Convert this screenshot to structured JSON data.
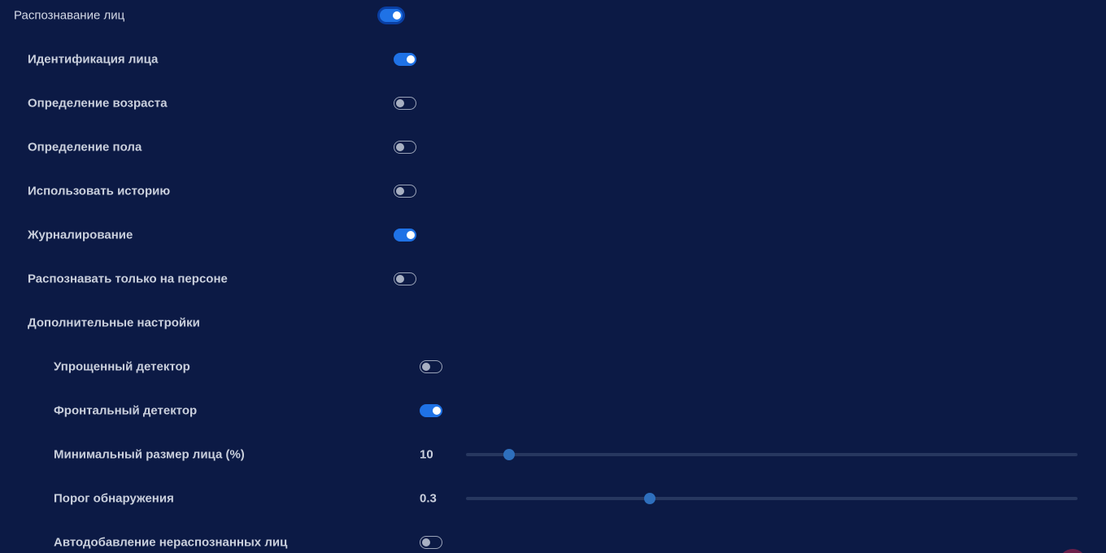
{
  "settings": {
    "face_recognition": {
      "label": "Распознавание лиц",
      "enabled": true
    },
    "face_identification": {
      "label": "Идентификация лица",
      "enabled": true
    },
    "age_detection": {
      "label": "Определение возраста",
      "enabled": false
    },
    "gender_detection": {
      "label": "Определение пола",
      "enabled": false
    },
    "use_history": {
      "label": "Использовать историю",
      "enabled": false
    },
    "logging": {
      "label": "Журналирование",
      "enabled": true
    },
    "person_only": {
      "label": "Распознавать только на персоне",
      "enabled": false
    },
    "advanced_settings": {
      "label": "Дополнительные настройки"
    },
    "simplified_detector": {
      "label": "Упрощенный детектор",
      "enabled": false
    },
    "frontal_detector": {
      "label": "Фронтальный детектор",
      "enabled": true
    },
    "min_face_size": {
      "label": "Минимальный размер лица (%)",
      "value": "10",
      "position": 0.07
    },
    "detection_threshold": {
      "label": "Порог обнаружения",
      "value": "0.3",
      "position": 0.3
    },
    "auto_add_unrecognized": {
      "label": "Автодобавление нераспознанных лиц",
      "enabled": false
    }
  },
  "colors": {
    "background": "#0c1a45",
    "accent": "#1f72e6",
    "slider_thumb": "#2e6fbd"
  }
}
